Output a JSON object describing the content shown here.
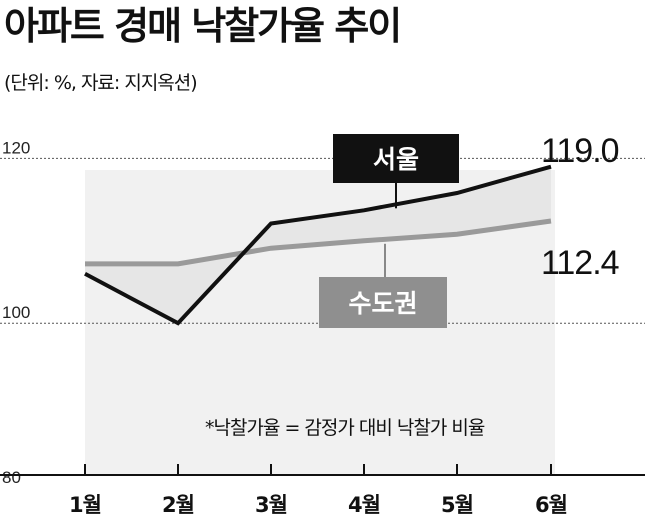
{
  "header": {
    "title": "아파트 경매 낙찰가율 추이",
    "subtitle": "(단위: %, 자료: 지지옥션)"
  },
  "chart_data": {
    "type": "line",
    "categories": [
      "1월",
      "2월",
      "3월",
      "4월",
      "5월",
      "6월"
    ],
    "ylim": [
      80,
      120
    ],
    "yticks": [
      "120",
      "100",
      "80"
    ],
    "series": [
      {
        "name": "서울",
        "values": [
          106.0,
          100.0,
          112.1,
          113.7,
          115.8,
          119.0
        ],
        "end_label": "119.0",
        "color": "#111111"
      },
      {
        "name": "수도권",
        "values": [
          107.2,
          107.2,
          109.1,
          110.0,
          110.8,
          112.4
        ],
        "end_label": "112.4",
        "color": "#9a9a9a"
      }
    ],
    "note": "*낙찰가율 = 감정가 대비 낙찰가 비율",
    "grid": "dotted horizontal at y-ticks"
  }
}
